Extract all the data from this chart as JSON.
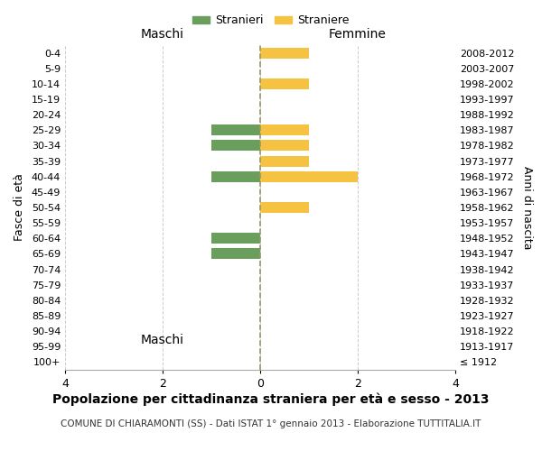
{
  "age_groups": [
    "100+",
    "95-99",
    "90-94",
    "85-89",
    "80-84",
    "75-79",
    "70-74",
    "65-69",
    "60-64",
    "55-59",
    "50-54",
    "45-49",
    "40-44",
    "35-39",
    "30-34",
    "25-29",
    "20-24",
    "15-19",
    "10-14",
    "5-9",
    "0-4"
  ],
  "birth_years": [
    "≤ 1912",
    "1913-1917",
    "1918-1922",
    "1923-1927",
    "1928-1932",
    "1933-1937",
    "1938-1942",
    "1943-1947",
    "1948-1952",
    "1953-1957",
    "1958-1962",
    "1963-1967",
    "1968-1972",
    "1973-1977",
    "1978-1982",
    "1983-1987",
    "1988-1992",
    "1993-1997",
    "1998-2002",
    "2003-2007",
    "2008-2012"
  ],
  "maschi": [
    0,
    0,
    0,
    0,
    0,
    0,
    0,
    -1,
    -1,
    0,
    0,
    0,
    -1,
    0,
    -1,
    -1,
    0,
    0,
    0,
    0,
    0
  ],
  "femmine": [
    0,
    0,
    0,
    0,
    0,
    0,
    0,
    0,
    0,
    0,
    1,
    0,
    2,
    1,
    1,
    1,
    0,
    0,
    1,
    0,
    1
  ],
  "color_maschi": "#6a9e5c",
  "color_femmine": "#f5c242",
  "title": "Popolazione per cittadinanza straniera per età e sesso - 2013",
  "subtitle": "COMUNE DI CHIARAMONTI (SS) - Dati ISTAT 1° gennaio 2013 - Elaborazione TUTTITALIA.IT",
  "ylabel_left": "Fasce di età",
  "ylabel_right": "Anni di nascita",
  "xlabel_maschi": "Maschi",
  "xlabel_femmine": "Femmine",
  "legend_maschi": "Stranieri",
  "legend_femmine": "Straniere",
  "xlim": [
    -4,
    4
  ],
  "xticks": [
    -4,
    -2,
    0,
    2,
    4
  ],
  "xticklabels": [
    "4",
    "2",
    "0",
    "2",
    "4"
  ],
  "bg_color": "#ffffff",
  "grid_color": "#cccccc",
  "bar_height": 0.7
}
